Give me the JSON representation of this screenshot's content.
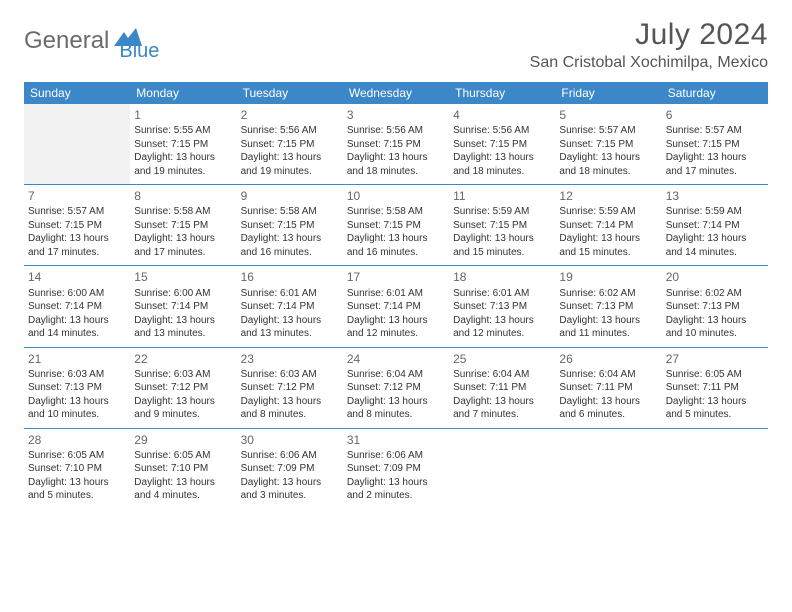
{
  "logo": {
    "part1": "General",
    "part2": "Blue"
  },
  "title": "July 2024",
  "location": "San Cristobal Xochimilpa, Mexico",
  "colors": {
    "header_bg": "#3b87c8",
    "header_text": "#ffffff",
    "logo_gray": "#6b6b6b",
    "logo_blue": "#3b87c8",
    "text": "#333333",
    "empty_bg": "#f2f2f2"
  },
  "days_of_week": [
    "Sunday",
    "Monday",
    "Tuesday",
    "Wednesday",
    "Thursday",
    "Friday",
    "Saturday"
  ],
  "weeks": [
    [
      null,
      {
        "n": "1",
        "sr": "5:55 AM",
        "ss": "7:15 PM",
        "dl": "13 hours and 19 minutes."
      },
      {
        "n": "2",
        "sr": "5:56 AM",
        "ss": "7:15 PM",
        "dl": "13 hours and 19 minutes."
      },
      {
        "n": "3",
        "sr": "5:56 AM",
        "ss": "7:15 PM",
        "dl": "13 hours and 18 minutes."
      },
      {
        "n": "4",
        "sr": "5:56 AM",
        "ss": "7:15 PM",
        "dl": "13 hours and 18 minutes."
      },
      {
        "n": "5",
        "sr": "5:57 AM",
        "ss": "7:15 PM",
        "dl": "13 hours and 18 minutes."
      },
      {
        "n": "6",
        "sr": "5:57 AM",
        "ss": "7:15 PM",
        "dl": "13 hours and 17 minutes."
      }
    ],
    [
      {
        "n": "7",
        "sr": "5:57 AM",
        "ss": "7:15 PM",
        "dl": "13 hours and 17 minutes."
      },
      {
        "n": "8",
        "sr": "5:58 AM",
        "ss": "7:15 PM",
        "dl": "13 hours and 17 minutes."
      },
      {
        "n": "9",
        "sr": "5:58 AM",
        "ss": "7:15 PM",
        "dl": "13 hours and 16 minutes."
      },
      {
        "n": "10",
        "sr": "5:58 AM",
        "ss": "7:15 PM",
        "dl": "13 hours and 16 minutes."
      },
      {
        "n": "11",
        "sr": "5:59 AM",
        "ss": "7:15 PM",
        "dl": "13 hours and 15 minutes."
      },
      {
        "n": "12",
        "sr": "5:59 AM",
        "ss": "7:14 PM",
        "dl": "13 hours and 15 minutes."
      },
      {
        "n": "13",
        "sr": "5:59 AM",
        "ss": "7:14 PM",
        "dl": "13 hours and 14 minutes."
      }
    ],
    [
      {
        "n": "14",
        "sr": "6:00 AM",
        "ss": "7:14 PM",
        "dl": "13 hours and 14 minutes."
      },
      {
        "n": "15",
        "sr": "6:00 AM",
        "ss": "7:14 PM",
        "dl": "13 hours and 13 minutes."
      },
      {
        "n": "16",
        "sr": "6:01 AM",
        "ss": "7:14 PM",
        "dl": "13 hours and 13 minutes."
      },
      {
        "n": "17",
        "sr": "6:01 AM",
        "ss": "7:14 PM",
        "dl": "13 hours and 12 minutes."
      },
      {
        "n": "18",
        "sr": "6:01 AM",
        "ss": "7:13 PM",
        "dl": "13 hours and 12 minutes."
      },
      {
        "n": "19",
        "sr": "6:02 AM",
        "ss": "7:13 PM",
        "dl": "13 hours and 11 minutes."
      },
      {
        "n": "20",
        "sr": "6:02 AM",
        "ss": "7:13 PM",
        "dl": "13 hours and 10 minutes."
      }
    ],
    [
      {
        "n": "21",
        "sr": "6:03 AM",
        "ss": "7:13 PM",
        "dl": "13 hours and 10 minutes."
      },
      {
        "n": "22",
        "sr": "6:03 AM",
        "ss": "7:12 PM",
        "dl": "13 hours and 9 minutes."
      },
      {
        "n": "23",
        "sr": "6:03 AM",
        "ss": "7:12 PM",
        "dl": "13 hours and 8 minutes."
      },
      {
        "n": "24",
        "sr": "6:04 AM",
        "ss": "7:12 PM",
        "dl": "13 hours and 8 minutes."
      },
      {
        "n": "25",
        "sr": "6:04 AM",
        "ss": "7:11 PM",
        "dl": "13 hours and 7 minutes."
      },
      {
        "n": "26",
        "sr": "6:04 AM",
        "ss": "7:11 PM",
        "dl": "13 hours and 6 minutes."
      },
      {
        "n": "27",
        "sr": "6:05 AM",
        "ss": "7:11 PM",
        "dl": "13 hours and 5 minutes."
      }
    ],
    [
      {
        "n": "28",
        "sr": "6:05 AM",
        "ss": "7:10 PM",
        "dl": "13 hours and 5 minutes."
      },
      {
        "n": "29",
        "sr": "6:05 AM",
        "ss": "7:10 PM",
        "dl": "13 hours and 4 minutes."
      },
      {
        "n": "30",
        "sr": "6:06 AM",
        "ss": "7:09 PM",
        "dl": "13 hours and 3 minutes."
      },
      {
        "n": "31",
        "sr": "6:06 AM",
        "ss": "7:09 PM",
        "dl": "13 hours and 2 minutes."
      },
      null,
      null,
      null
    ]
  ],
  "labels": {
    "sunrise": "Sunrise:",
    "sunset": "Sunset:",
    "daylight": "Daylight:"
  }
}
